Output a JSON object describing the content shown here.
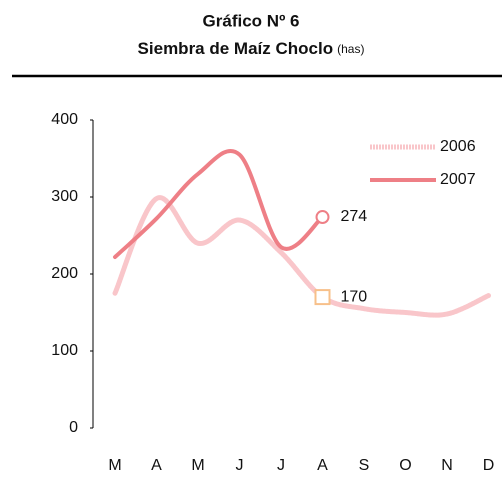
{
  "chart_data": {
    "type": "line",
    "title": "Gráfico Nº 6",
    "subtitle": "Siembra de Maíz Choclo",
    "unit": "(has)",
    "categories": [
      "M",
      "A",
      "M",
      "J",
      "J",
      "A",
      "S",
      "O",
      "N",
      "D"
    ],
    "series": [
      {
        "name": "2006",
        "color": "#f9c6ca",
        "values": [
          175,
          298,
          240,
          270,
          228,
          170,
          155,
          150,
          148,
          172
        ]
      },
      {
        "name": "2007",
        "color": "#ee7f86",
        "values": [
          222,
          272,
          330,
          355,
          235,
          274,
          null,
          null,
          null,
          null
        ]
      }
    ],
    "ylim": [
      0,
      400
    ],
    "yticks": [
      0,
      100,
      200,
      300,
      400
    ],
    "legend": "upper right"
  }
}
